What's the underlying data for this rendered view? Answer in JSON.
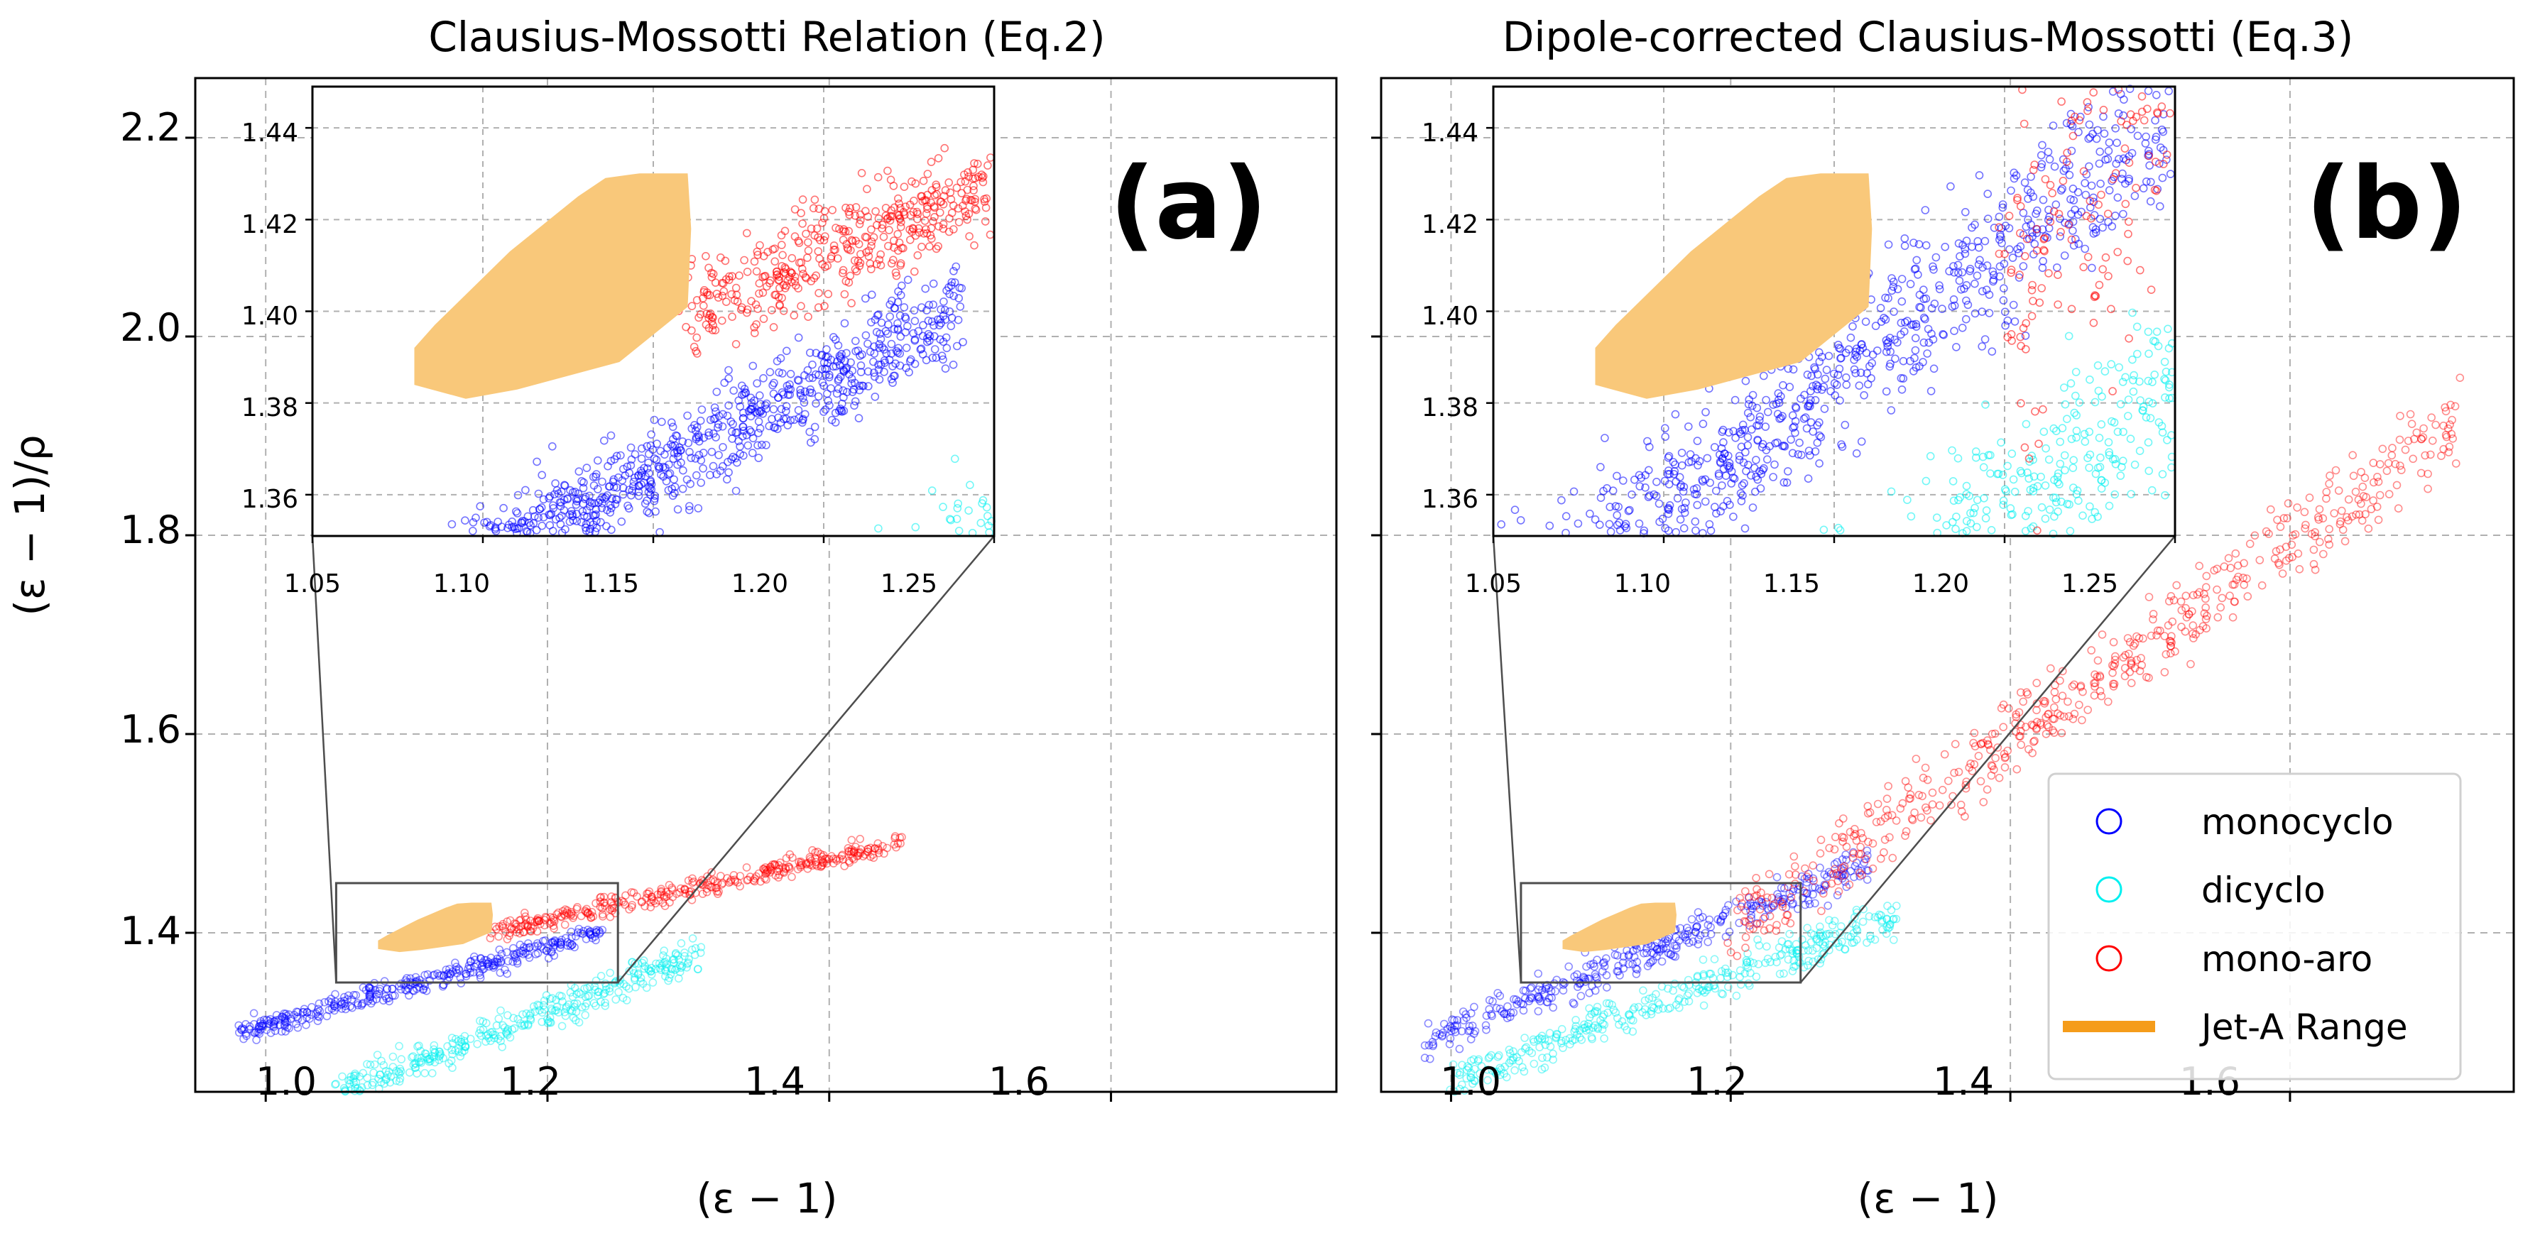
{
  "chart_data": [
    {
      "type": "scatter",
      "panel_label": "(a)",
      "title": "Clausius-Mossotti Relation (Eq.2)",
      "xlabel": "(ε − 1)",
      "ylabel": "(ε − 1)/ρ",
      "xlim": [
        0.95,
        1.76
      ],
      "ylim": [
        1.24,
        2.26
      ],
      "xticks": [
        "1.0",
        "1.2",
        "1.4",
        "1.6"
      ],
      "yticks": [
        "1.4",
        "1.6",
        "1.8",
        "2.0",
        "2.2"
      ],
      "grid": true,
      "series": [
        {
          "name": "monocyclo",
          "color": "#0000ff",
          "marker": "hollow-circle",
          "band": {
            "x_start": 0.98,
            "x_end": 1.24,
            "y_start": 1.3,
            "y_end": 1.4,
            "spread": 0.018
          }
        },
        {
          "name": "dicyclo",
          "color": "#00f0f0",
          "marker": "hollow-circle",
          "band": {
            "x_start": 1.05,
            "x_end": 1.31,
            "y_start": 1.24,
            "y_end": 1.38,
            "spread": 0.03
          }
        },
        {
          "name": "mono-aro",
          "color": "#ff0000",
          "marker": "hollow-circle",
          "band": {
            "x_start": 1.16,
            "x_end": 1.45,
            "y_start": 1.4,
            "y_end": 1.49,
            "spread": 0.018
          }
        }
      ],
      "jet_a_range": {
        "x": [
          1.08,
          1.16
        ],
        "y": [
          1.38,
          1.43
        ]
      },
      "zoom_box": {
        "x": [
          1.05,
          1.25
        ],
        "y": [
          1.35,
          1.45
        ]
      },
      "inset": {
        "xlim": [
          1.05,
          1.25
        ],
        "ylim": [
          1.351,
          1.449
        ],
        "xticks": [
          "1.05",
          "1.10",
          "1.15",
          "1.20",
          "1.25"
        ],
        "yticks": [
          "1.36",
          "1.38",
          "1.40",
          "1.42",
          "1.44"
        ]
      }
    },
    {
      "type": "scatter",
      "panel_label": "(b)",
      "title": "Dipole-corrected Clausius-Mossotti (Eq.3)",
      "xlabel": "(ε − 1)",
      "xlim": [
        0.95,
        1.76
      ],
      "ylim": [
        1.24,
        2.26
      ],
      "xticks": [
        "1.0",
        "1.2",
        "1.4",
        "1.6"
      ],
      "grid": true,
      "series": [
        {
          "name": "monocyclo",
          "color": "#0000ff",
          "marker": "hollow-circle",
          "band": {
            "x_start": 0.98,
            "x_end": 1.3,
            "y_start": 1.29,
            "y_end": 1.47,
            "spread": 0.03
          }
        },
        {
          "name": "dicyclo",
          "color": "#00f0f0",
          "marker": "hollow-circle",
          "band": {
            "x_start": 1.0,
            "x_end": 1.32,
            "y_start": 1.25,
            "y_end": 1.42,
            "spread": 0.035
          }
        },
        {
          "name": "mono-aro",
          "color": "#ff0000",
          "marker": "hollow-circle",
          "band": {
            "x_start": 1.2,
            "x_end": 1.72,
            "y_start": 1.4,
            "y_end": 1.91,
            "spread": 0.07
          }
        }
      ],
      "jet_a_range": {
        "x": [
          1.08,
          1.16
        ],
        "y": [
          1.38,
          1.43
        ]
      },
      "zoom_box": {
        "x": [
          1.05,
          1.25
        ],
        "y": [
          1.35,
          1.45
        ]
      },
      "inset": {
        "xlim": [
          1.05,
          1.25
        ],
        "ylim": [
          1.351,
          1.449
        ],
        "xticks": [
          "1.05",
          "1.10",
          "1.15",
          "1.20",
          "1.25"
        ],
        "yticks": [
          "1.36",
          "1.38",
          "1.40",
          "1.42",
          "1.44"
        ]
      },
      "legend": {
        "placement": "lower-right",
        "entries": [
          {
            "label": "monocyclo",
            "color": "#0000ff",
            "marker": "hollow-circle"
          },
          {
            "label": "dicyclo",
            "color": "#00f0f0",
            "marker": "hollow-circle"
          },
          {
            "label": "mono-aro",
            "color": "#ff0000",
            "marker": "hollow-circle"
          },
          {
            "label": "Jet-A Range",
            "color": "#f5a020",
            "marker": "line"
          }
        ]
      }
    }
  ],
  "colors": {
    "jet_a_fill": "#f9c87a",
    "jet_a_legend": "#f59c1a",
    "grid": "#b0b0b0"
  }
}
